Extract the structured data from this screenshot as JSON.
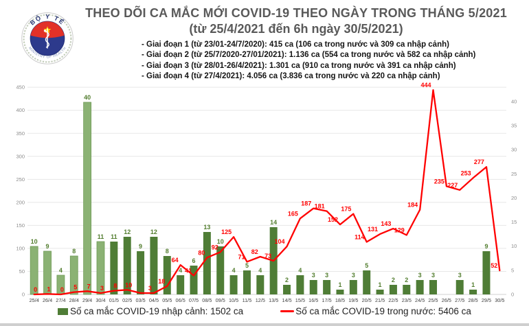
{
  "header": {
    "title_line1": "THEO DÕI CA MẮC MỚI COVID-19 THEO NGÀY TRONG THÁNG 5/2021",
    "title_line2": "(từ 25/4/2021 đến 6h ngày 30/5/2021)",
    "bullets": [
      "- Giai đoạn 1 (từ 23/01-24/7/2020): 415 ca (106 ca trong nước và 309 ca nhập cảnh)",
      "- Giai đoạn 2 (từ 25/7/2020-27/01/2021): 1.136 ca (554 ca trong nước và 582 ca nhập cảnh)",
      "- Giai đoạn 3 (từ 28/01-26/4/2021): 1.301 ca (910 ca trong nước và 391 ca nhập cảnh)",
      "- Giai đoạn 4 (từ 27/4/2021): 4.056 ca (3.836 ca trong nước và 220 ca nhập cảnh)"
    ],
    "logo": {
      "top_text": "BỘ Y TẾ",
      "bottom_text": "MINISTRY OF HEALTH"
    }
  },
  "chart_data": {
    "type": "bar+line",
    "categories": [
      "25/4",
      "26/4",
      "27/4",
      "28/4",
      "29/4",
      "30/4",
      "01/5",
      "02/5",
      "03/5",
      "04/5",
      "05/5",
      "06/5",
      "07/5",
      "08/5",
      "09/5",
      "10/5",
      "11/5",
      "12/5",
      "13/5",
      "14/5",
      "15/5",
      "16/5",
      "17/5",
      "18/5",
      "19/5",
      "20/5",
      "21/5",
      "22/5",
      "23/5",
      "24/5",
      "25/5",
      "26/5",
      "27/5",
      "28/5",
      "29/5",
      "30/5"
    ],
    "series": [
      {
        "name": "Số ca mắc COVID-19 nhập cảnh",
        "type": "bar",
        "axis": "right",
        "values": [
          10,
          9,
          4,
          8,
          40,
          11,
          11,
          12,
          9,
          12,
          8,
          4,
          6,
          13,
          10,
          4,
          5,
          4,
          14,
          2,
          4,
          3,
          3,
          1,
          3,
          5,
          1,
          2,
          2,
          3,
          3,
          0,
          3,
          1,
          9,
          0
        ],
        "color_april": "#8bb274",
        "color_may": "#4f7d36",
        "april_bar_count": 6,
        "label_color": "#527d2e"
      },
      {
        "name": "Số ca mắc COVID-19 trong nước",
        "type": "line",
        "axis": "left",
        "values": [
          0,
          1,
          0,
          5,
          7,
          3,
          8,
          10,
          3,
          3,
          18,
          64,
          41,
          80,
          92,
          125,
          71,
          82,
          73,
          104,
          165,
          187,
          181,
          152,
          175,
          114,
          131,
          143,
          129,
          184,
          444,
          235,
          227,
          253,
          277,
          52
        ],
        "labels": [
          "0",
          "1",
          "0",
          "5",
          "7",
          "3",
          "8",
          "10",
          "",
          "3",
          "18",
          "64",
          "41",
          "80",
          "92",
          "125",
          "71",
          "82",
          "73",
          "104",
          "165",
          "187",
          "181",
          "152",
          "175",
          "114",
          "131",
          "143",
          "129",
          "184",
          "444",
          "235",
          "227",
          "253",
          "277",
          "52"
        ],
        "color": "#ff0000"
      }
    ],
    "left_axis": {
      "min": 0,
      "max": 450,
      "step": 50
    },
    "right_axis": {
      "min": 0,
      "max": 40,
      "step": 5
    },
    "grid": true,
    "legend_position": "bottom"
  },
  "legend": [
    {
      "swatch": "bar",
      "color": "#4f7d36",
      "label": "Số ca mắc COVID-19 nhập cảnh: 1502 ca"
    },
    {
      "swatch": "line",
      "color": "#ff0000",
      "label": "Số ca mắc COVID-19 trong nước: 5406 ca"
    }
  ]
}
